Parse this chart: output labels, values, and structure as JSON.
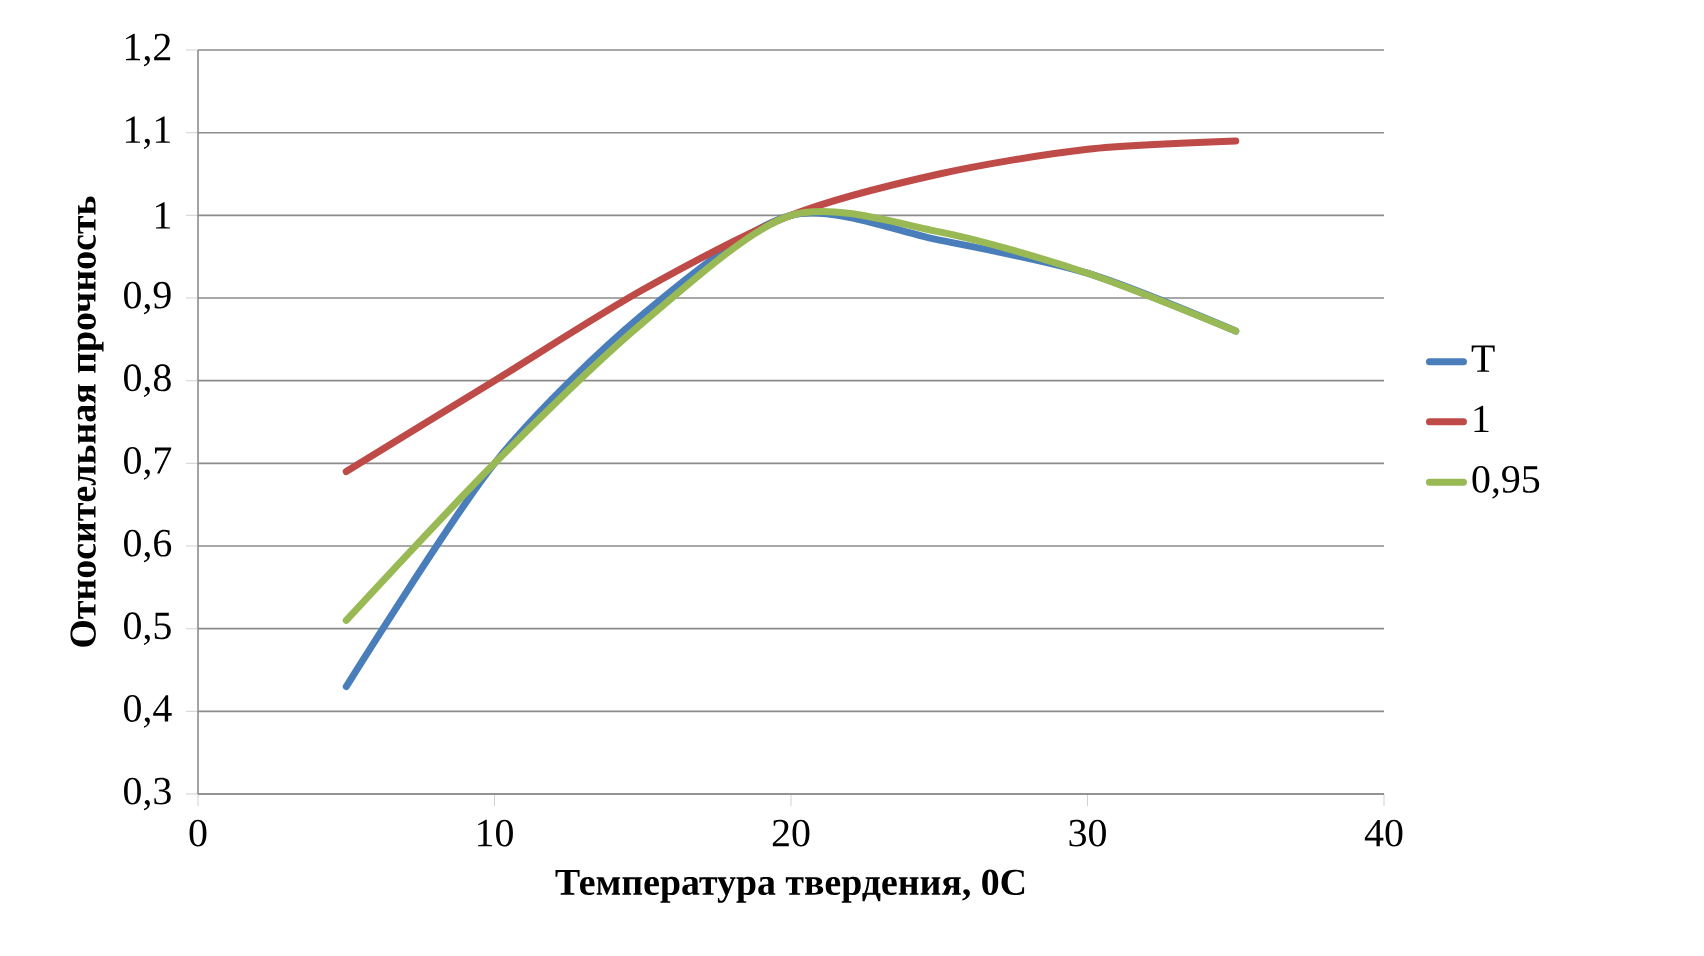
{
  "chart_data": {
    "type": "line",
    "xlabel": "Температура твердения, 0С",
    "ylabel": "Относительная прочность",
    "x": [
      5,
      10,
      15,
      20,
      25,
      30,
      35
    ],
    "series": [
      {
        "name": "Т",
        "color": "#4a7ebb",
        "values": [
          0.43,
          0.7,
          0.88,
          1.0,
          0.97,
          0.93,
          0.86
        ]
      },
      {
        "name": "1",
        "color": "#be4b48",
        "values": [
          0.69,
          0.8,
          0.91,
          1.0,
          1.05,
          1.08,
          1.09
        ]
      },
      {
        "name": "0,95",
        "color": "#98b954",
        "values": [
          0.51,
          0.7,
          0.87,
          1.0,
          0.98,
          0.93,
          0.86
        ]
      }
    ],
    "xlim": [
      0,
      40
    ],
    "ylim": [
      0.3,
      1.2
    ],
    "xticks": [
      0,
      10,
      20,
      30,
      40
    ],
    "yticks": [
      {
        "value": 0.3,
        "label": "0,3"
      },
      {
        "value": 0.4,
        "label": "0,4"
      },
      {
        "value": 0.5,
        "label": "0,5"
      },
      {
        "value": 0.6,
        "label": "0,6"
      },
      {
        "value": 0.7,
        "label": "0,7"
      },
      {
        "value": 0.8,
        "label": "0,8"
      },
      {
        "value": 0.9,
        "label": "0,9"
      },
      {
        "value": 1.0,
        "label": "1"
      },
      {
        "value": 1.1,
        "label": "1,1"
      },
      {
        "value": 1.2,
        "label": "1,2"
      }
    ],
    "grid": "y",
    "legend": "right"
  }
}
